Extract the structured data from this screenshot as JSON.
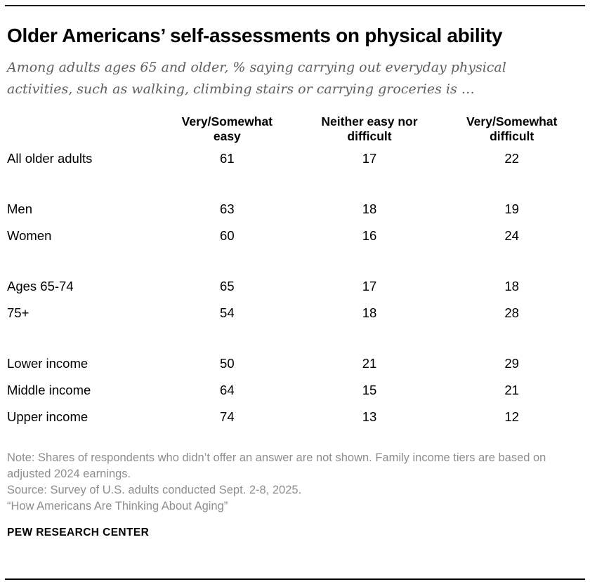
{
  "header": {
    "title": "Older Americans’ self-assessments on physical ability",
    "subtitle": "Among adults ages 65 and older, % saying carrying out everyday physical activities, such as walking, climbing stairs or carrying groceries is …"
  },
  "chart_data": {
    "type": "table",
    "columns": [
      "Very/Somewhat easy",
      "Neither easy nor difficult",
      "Very/Somewhat difficult"
    ],
    "rows": [
      {
        "label": "All older adults",
        "values": [
          61,
          17,
          22
        ]
      },
      {
        "label": "Men",
        "values": [
          63,
          18,
          19
        ]
      },
      {
        "label": "Women",
        "values": [
          60,
          16,
          24
        ]
      },
      {
        "label": "Ages 65-74",
        "values": [
          65,
          17,
          18
        ]
      },
      {
        "label": "75+",
        "values": [
          54,
          18,
          28
        ]
      },
      {
        "label": "Lower income",
        "values": [
          50,
          21,
          29
        ]
      },
      {
        "label": "Middle income",
        "values": [
          64,
          15,
          21
        ]
      },
      {
        "label": "Upper income",
        "values": [
          74,
          13,
          12
        ]
      }
    ],
    "values_are": "percent"
  },
  "notes": {
    "note": "Note: Shares of respondents who didn’t offer an answer are not shown. Family income tiers are based on adjusted 2024 earnings.",
    "source": "Source: Survey of U.S. adults conducted Sept. 2-8, 2025.",
    "report": "“How Americans Are Thinking About Aging”"
  },
  "footer": {
    "brand": "PEW RESEARCH CENTER"
  }
}
